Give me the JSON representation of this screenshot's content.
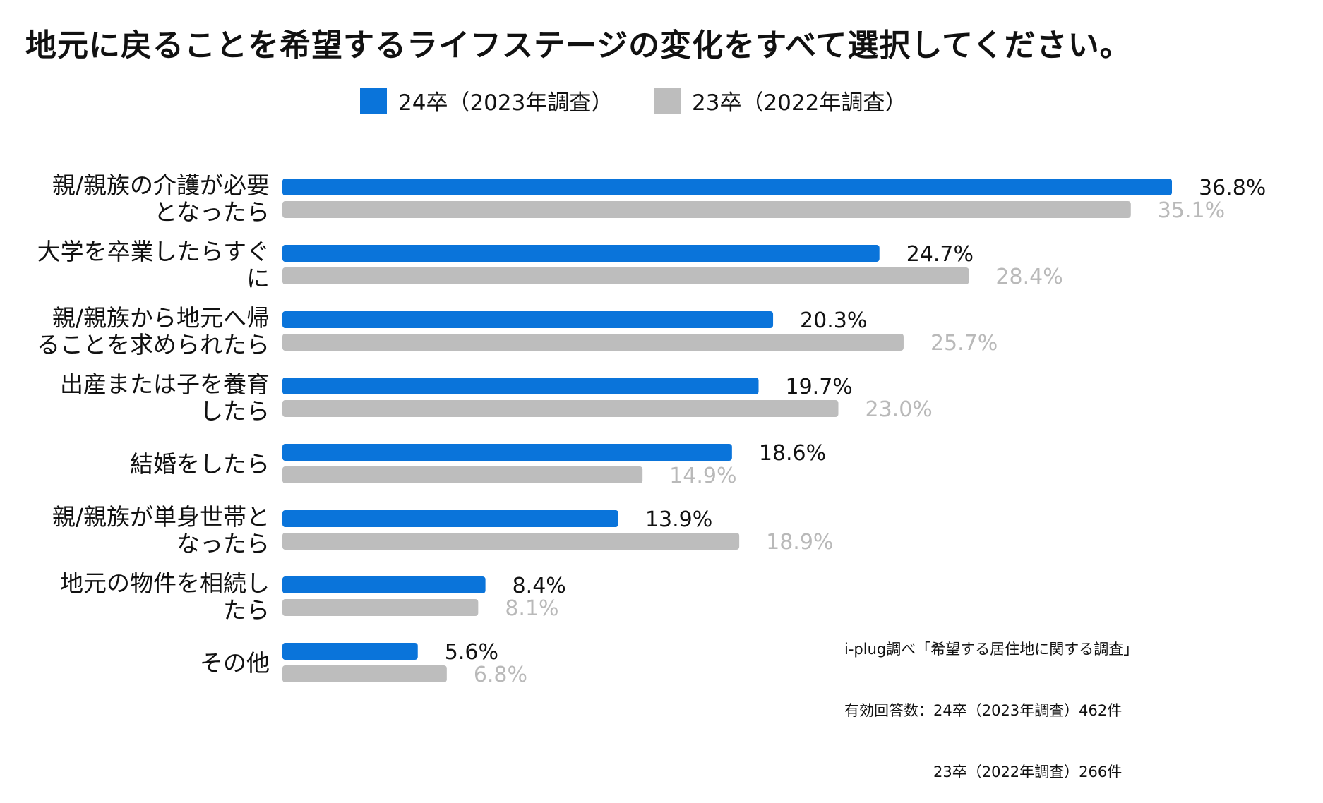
{
  "chart_data": {
    "type": "bar",
    "orientation": "horizontal",
    "title": "地元に戻ることを希望するライフステージの変化をすべて選択してください。",
    "categories": [
      [
        "親/親族の介護が必要",
        "となったら"
      ],
      [
        "大学を卒業したらすぐ",
        "に"
      ],
      [
        "親/親族から地元へ帰",
        "ることを求められたら"
      ],
      [
        "出産または子を養育",
        "したら"
      ],
      [
        "結婚をしたら"
      ],
      [
        "親/親族が単身世帯と",
        "なったら"
      ],
      [
        "地元の物件を相続し",
        "たら"
      ],
      [
        "その他"
      ]
    ],
    "series": [
      {
        "name": "24卒（2023年調査）",
        "color": "#0a74da",
        "label_color": "#111111",
        "values": [
          36.8,
          24.7,
          20.3,
          19.7,
          18.6,
          13.9,
          8.4,
          5.6
        ]
      },
      {
        "name": "23卒（2022年調査）",
        "color": "#bdbdbd",
        "label_color": "#b9b9b9",
        "values": [
          35.1,
          28.4,
          25.7,
          23.0,
          14.9,
          18.9,
          8.1,
          6.8
        ]
      }
    ],
    "value_suffix": "%",
    "xlim": [
      0,
      36.8
    ],
    "legend": "top",
    "grid": false
  },
  "note": {
    "lines": [
      "i-plug調べ「希望する居住地に関する調査」",
      "有効回答数：24卒（2023年調査）462件",
      "　　　　　　23卒（2022年調査）266件"
    ]
  }
}
